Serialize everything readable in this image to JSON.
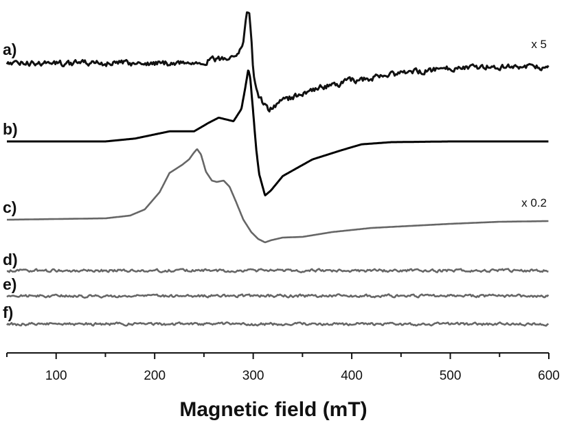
{
  "chart_data": {
    "type": "line",
    "xlabel": "Magnetic field (mT)",
    "ylabel": "",
    "xlim": [
      50,
      600
    ],
    "x_ticks": [
      "100",
      "200",
      "300",
      "400",
      "500",
      "600"
    ],
    "grid": false,
    "series": [
      {
        "name": "a)",
        "scale_note": "x 5",
        "color": "#111111",
        "noisy": true,
        "baseline": 0,
        "points": [
          [
            50,
            0
          ],
          [
            100,
            0
          ],
          [
            150,
            0
          ],
          [
            200,
            0
          ],
          [
            240,
            1
          ],
          [
            270,
            8
          ],
          [
            285,
            18
          ],
          [
            290,
            35
          ],
          [
            293,
            85
          ],
          [
            296,
            88
          ],
          [
            298,
            50
          ],
          [
            300,
            -20
          ],
          [
            305,
            -55
          ],
          [
            315,
            -80
          ],
          [
            330,
            -65
          ],
          [
            360,
            -45
          ],
          [
            400,
            -30
          ],
          [
            450,
            -18
          ],
          [
            500,
            -8
          ],
          [
            550,
            -5
          ],
          [
            600,
            -8
          ]
        ]
      },
      {
        "name": "b)",
        "scale_note": "",
        "color": "#000000",
        "noisy": false,
        "baseline": 0,
        "points": [
          [
            50,
            0
          ],
          [
            150,
            0
          ],
          [
            180,
            4
          ],
          [
            215,
            14
          ],
          [
            240,
            14
          ],
          [
            255,
            26
          ],
          [
            265,
            33
          ],
          [
            280,
            28
          ],
          [
            288,
            45
          ],
          [
            292,
            75
          ],
          [
            295,
            100
          ],
          [
            297,
            88
          ],
          [
            300,
            40
          ],
          [
            303,
            -10
          ],
          [
            306,
            -45
          ],
          [
            312,
            -75
          ],
          [
            318,
            -68
          ],
          [
            330,
            -48
          ],
          [
            360,
            -25
          ],
          [
            390,
            -12
          ],
          [
            410,
            -4
          ],
          [
            440,
            -1
          ],
          [
            500,
            0
          ],
          [
            600,
            0
          ]
        ]
      },
      {
        "name": "c)",
        "scale_note": "x 0.2",
        "color": "#666666",
        "noisy": false,
        "baseline": 0,
        "points": [
          [
            50,
            0
          ],
          [
            150,
            2
          ],
          [
            175,
            6
          ],
          [
            190,
            15
          ],
          [
            205,
            40
          ],
          [
            215,
            68
          ],
          [
            228,
            80
          ],
          [
            235,
            88
          ],
          [
            240,
            98
          ],
          [
            243,
            103
          ],
          [
            247,
            95
          ],
          [
            252,
            70
          ],
          [
            258,
            57
          ],
          [
            263,
            55
          ],
          [
            270,
            57
          ],
          [
            276,
            48
          ],
          [
            282,
            28
          ],
          [
            290,
            0
          ],
          [
            298,
            -18
          ],
          [
            305,
            -28
          ],
          [
            312,
            -33
          ],
          [
            318,
            -30
          ],
          [
            330,
            -26
          ],
          [
            350,
            -25
          ],
          [
            380,
            -18
          ],
          [
            420,
            -12
          ],
          [
            500,
            -6
          ],
          [
            550,
            -3
          ],
          [
            600,
            -2
          ]
        ]
      },
      {
        "name": "d)",
        "scale_note": "",
        "color": "#666666",
        "noisy": true,
        "baseline": 0,
        "points": [
          [
            50,
            0
          ],
          [
            600,
            0
          ]
        ]
      },
      {
        "name": "e)",
        "scale_note": "",
        "color": "#666666",
        "noisy": true,
        "baseline": 0,
        "points": [
          [
            50,
            0
          ],
          [
            600,
            0
          ]
        ]
      },
      {
        "name": "f)",
        "scale_note": "",
        "color": "#666666",
        "noisy": true,
        "baseline": 0,
        "points": [
          [
            50,
            0
          ],
          [
            600,
            0
          ]
        ]
      }
    ]
  }
}
